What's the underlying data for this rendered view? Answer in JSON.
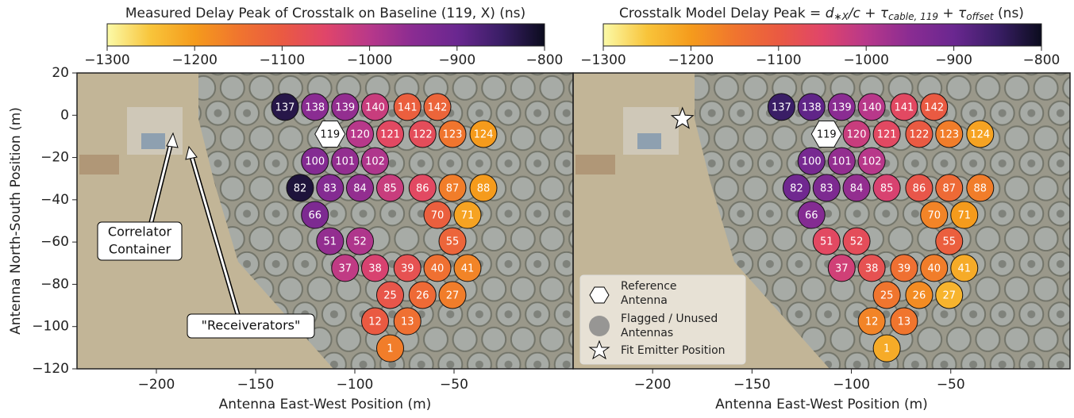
{
  "chart_data": [
    {
      "type": "scatter",
      "colorbar_title": "Measured Delay Peak of Crosstalk on Baseline (119, X) (ns)",
      "xlabel": "Antenna East-West Position (m)",
      "ylabel": "Antenna North-South Position (m)",
      "xlim": [
        -240,
        10
      ],
      "ylim": [
        -120,
        20
      ],
      "xticks": [
        {
          "value": -200,
          "label": "−200"
        },
        {
          "value": -150,
          "label": "−150"
        },
        {
          "value": -100,
          "label": "−100"
        },
        {
          "value": -50,
          "label": "−50"
        }
      ],
      "yticks": [
        20,
        0,
        {
          "value": -20,
          "label": "−20"
        },
        {
          "value": -40,
          "label": "−40"
        },
        {
          "value": -60,
          "label": "−60"
        },
        {
          "value": -80,
          "label": "−80"
        },
        {
          "value": -100,
          "label": "−100"
        },
        {
          "value": -120,
          "label": "−120"
        }
      ],
      "clim": [
        -1300,
        -800
      ],
      "cticks": [
        {
          "value": -1300,
          "label": "−1300"
        },
        {
          "value": -1200,
          "label": "−1200"
        },
        {
          "value": -1100,
          "label": "−1100"
        },
        {
          "value": -1000,
          "label": "−1000"
        },
        {
          "value": -900,
          "label": "−900"
        },
        {
          "value": -800,
          "label": "−800"
        }
      ],
      "cmap": [
        "#fbfaa8",
        "#f8c43a",
        "#f59b1c",
        "#f0752e",
        "#ea5a42",
        "#e0456a",
        "#b8388a",
        "#8a2c92",
        "#6a2790",
        "#3a1e66",
        "#0b0c1e"
      ],
      "labels": [
        "137",
        "138",
        "139",
        "140",
        "141",
        "142",
        "120",
        "121",
        "122",
        "123",
        "124",
        "100",
        "101",
        "102",
        "82",
        "83",
        "84",
        "85",
        "86",
        "87",
        "88",
        "66",
        "70",
        "71",
        "51",
        "52",
        "55",
        "37",
        "38",
        "39",
        "40",
        "41",
        "25",
        "26",
        "27",
        "12",
        "13",
        "1"
      ],
      "x": [
        -135.2,
        -120.1,
        -104.9,
        -89.8,
        -73.5,
        -58.4,
        -97.4,
        -82.2,
        -65.9,
        -50.8,
        -35.2,
        -120.1,
        -104.9,
        -89.8,
        -127.6,
        -112.5,
        -97.4,
        -82.2,
        -65.9,
        -50.8,
        -35.2,
        -120.1,
        -58.4,
        -43.2,
        -112.5,
        -97.4,
        -50.8,
        -104.9,
        -89.8,
        -73.5,
        -58.4,
        -43.2,
        -82.2,
        -65.9,
        -50.8,
        -89.8,
        -73.5,
        -82.2
      ],
      "y": [
        3.9,
        3.9,
        3.9,
        3.9,
        3.9,
        3.9,
        -8.9,
        -8.9,
        -8.9,
        -8.9,
        -8.9,
        -21.7,
        -21.7,
        -21.7,
        -34.4,
        -34.4,
        -34.4,
        -34.4,
        -34.4,
        -34.4,
        -34.4,
        -47.2,
        -47.2,
        -47.2,
        -59.6,
        -59.6,
        -59.6,
        -72.3,
        -72.3,
        -72.3,
        -72.3,
        -72.3,
        -85.1,
        -85.1,
        -85.1,
        -97.5,
        -97.5,
        -110.3
      ],
      "values": [
        -830,
        -950,
        -960,
        -1020,
        -1110,
        -1120,
        -1000,
        -1060,
        -1070,
        -1150,
        -1200,
        -940,
        -960,
        -990,
        -820,
        -940,
        -960,
        -1020,
        -1060,
        -1160,
        -1200,
        -930,
        -1110,
        -1210,
        -960,
        -990,
        -1120,
        -1010,
        -1040,
        -1080,
        -1140,
        -1170,
        -1090,
        -1130,
        -1160,
        -1100,
        -1140,
        -1160
      ],
      "reference": {
        "label": "119",
        "x": -112.5,
        "y": -8.9
      },
      "annotations": [
        [
          "Correlator",
          "Container"
        ],
        [
          "\"Receiverators\""
        ]
      ]
    },
    {
      "type": "scatter",
      "colorbar_title_parts": [
        "Crosstalk Model Delay Peak = ",
        "d",
        "∗X",
        "/c",
        " + τ",
        "cable, 119",
        " + τ",
        "offset",
        " (ns)"
      ],
      "xlabel": "Antenna East-West Position (m)",
      "xlim": [
        -240,
        10
      ],
      "ylim": [
        -120,
        20
      ],
      "xticks": [
        {
          "value": -200,
          "label": "−200"
        },
        {
          "value": -150,
          "label": "−150"
        },
        {
          "value": -100,
          "label": "−100"
        },
        {
          "value": -50,
          "label": "−50"
        }
      ],
      "clim": [
        -1300,
        -800
      ],
      "cticks": [
        {
          "value": -1300,
          "label": "−1300"
        },
        {
          "value": -1200,
          "label": "−1200"
        },
        {
          "value": -1100,
          "label": "−1100"
        },
        {
          "value": -1000,
          "label": "−1000"
        },
        {
          "value": -900,
          "label": "−900"
        },
        {
          "value": -800,
          "label": "−800"
        }
      ],
      "cmap": [
        "#fbfaa8",
        "#f8c43a",
        "#f59b1c",
        "#f0752e",
        "#ea5a42",
        "#e0456a",
        "#b8388a",
        "#8a2c92",
        "#6a2790",
        "#3a1e66",
        "#0b0c1e"
      ],
      "labels": [
        "137",
        "138",
        "139",
        "140",
        "141",
        "142",
        "120",
        "121",
        "122",
        "123",
        "124",
        "100",
        "101",
        "102",
        "82",
        "83",
        "84",
        "85",
        "86",
        "87",
        "88",
        "66",
        "70",
        "71",
        "51",
        "52",
        "55",
        "37",
        "38",
        "39",
        "40",
        "41",
        "25",
        "26",
        "27",
        "12",
        "13",
        "1"
      ],
      "x": [
        -135.2,
        -120.1,
        -104.9,
        -89.8,
        -73.5,
        -58.4,
        -97.4,
        -82.2,
        -65.9,
        -50.8,
        -35.2,
        -120.1,
        -104.9,
        -89.8,
        -127.6,
        -112.5,
        -97.4,
        -82.2,
        -65.9,
        -50.8,
        -35.2,
        -120.1,
        -58.4,
        -43.2,
        -112.5,
        -97.4,
        -50.8,
        -104.9,
        -89.8,
        -73.5,
        -58.4,
        -43.2,
        -82.2,
        -65.9,
        -50.8,
        -89.8,
        -73.5,
        -82.2
      ],
      "y": [
        3.9,
        3.9,
        3.9,
        3.9,
        3.9,
        3.9,
        -8.9,
        -8.9,
        -8.9,
        -8.9,
        -8.9,
        -21.7,
        -21.7,
        -21.7,
        -34.4,
        -34.4,
        -34.4,
        -34.4,
        -34.4,
        -34.4,
        -34.4,
        -47.2,
        -47.2,
        -47.2,
        -59.6,
        -59.6,
        -59.6,
        -72.3,
        -72.3,
        -72.3,
        -72.3,
        -72.3,
        -85.1,
        -85.1,
        -85.1,
        -97.5,
        -97.5,
        -110.3
      ],
      "values": [
        -850,
        -890,
        -950,
        -1000,
        -1060,
        -1100,
        -1020,
        -1060,
        -1100,
        -1160,
        -1210,
        -920,
        -960,
        -1000,
        -910,
        -930,
        -960,
        -1040,
        -1090,
        -1130,
        -1160,
        -940,
        -1170,
        -1200,
        -1060,
        -1070,
        -1110,
        -1030,
        -1080,
        -1140,
        -1160,
        -1220,
        -1150,
        -1180,
        -1230,
        -1170,
        -1150,
        -1220
      ],
      "reference": {
        "label": "119",
        "x": -112.5,
        "y": -8.9
      },
      "emitter": {
        "x": -185,
        "y": -1.8
      },
      "legend": {
        "loc": "lower left",
        "entries": [
          [
            "Reference",
            "Antenna"
          ],
          [
            "Flagged / Unused",
            "Antennas"
          ],
          [
            "Fit Emitter Position"
          ]
        ]
      }
    }
  ]
}
